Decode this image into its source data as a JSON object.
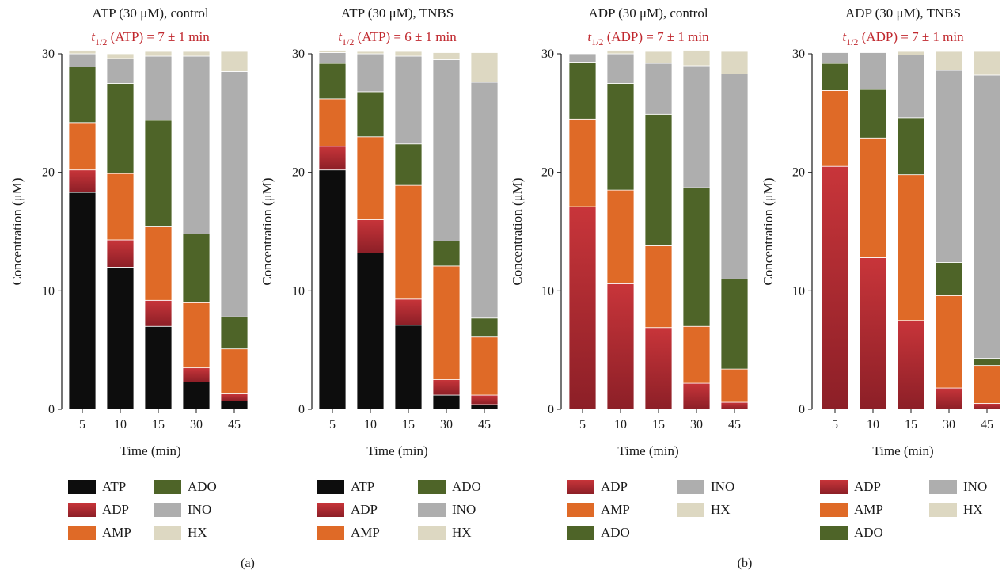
{
  "colors": {
    "ATP": "#0d0d0d",
    "ADP": "#a8252c",
    "AMP": "#df6a27",
    "ADO": "#4e6428",
    "INO": "#aeaeae",
    "HX": "#ddd8c2"
  },
  "panel_labels": [
    "(a)",
    "(b)"
  ],
  "chart_data": [
    {
      "type": "bar",
      "stacked": true,
      "title": "ATP (30 μM), control",
      "subtitle": "t1/2 (ATP) = 7 ± 1 min",
      "subtitle_parts": {
        "var": "t",
        "sub": "1/2",
        "rest": " (ATP) = 7 ± 1 min"
      },
      "xlabel": "Time (min)",
      "ylabel": "Concentration (μM)",
      "ylim": [
        0,
        30
      ],
      "yticks": [
        0,
        10,
        20,
        30
      ],
      "categories": [
        "5",
        "10",
        "15",
        "30",
        "45"
      ],
      "legend": [
        "ATP",
        "ADP",
        "AMP",
        "ADO",
        "INO",
        "HX"
      ],
      "series": [
        {
          "name": "ATP",
          "values": [
            18.3,
            12.0,
            7.0,
            2.3,
            0.7
          ]
        },
        {
          "name": "ADP",
          "values": [
            1.9,
            2.3,
            2.2,
            1.2,
            0.6
          ]
        },
        {
          "name": "AMP",
          "values": [
            4.0,
            5.6,
            6.2,
            5.5,
            3.8
          ]
        },
        {
          "name": "ADO",
          "values": [
            4.7,
            7.6,
            9.0,
            5.8,
            2.7
          ]
        },
        {
          "name": "INO",
          "values": [
            1.1,
            2.1,
            5.4,
            15.0,
            20.7
          ]
        },
        {
          "name": "HX",
          "values": [
            0.3,
            0.4,
            0.4,
            0.4,
            1.7
          ]
        }
      ]
    },
    {
      "type": "bar",
      "stacked": true,
      "title": "ATP (30 μM), TNBS",
      "subtitle": "t1/2 (ATP) = 6 ± 1 min",
      "subtitle_parts": {
        "var": "t",
        "sub": "1/2",
        "rest": " (ATP) = 6 ± 1 min"
      },
      "xlabel": "Time (min)",
      "ylabel": "Concentration (μM)",
      "ylim": [
        0,
        30
      ],
      "yticks": [
        0,
        10,
        20,
        30
      ],
      "categories": [
        "5",
        "10",
        "15",
        "30",
        "45"
      ],
      "legend": [
        "ATP",
        "ADP",
        "AMP",
        "ADO",
        "INO",
        "HX"
      ],
      "series": [
        {
          "name": "ATP",
          "values": [
            20.2,
            13.2,
            7.1,
            1.2,
            0.4
          ]
        },
        {
          "name": "ADP",
          "values": [
            2.0,
            2.8,
            2.2,
            1.3,
            0.8
          ]
        },
        {
          "name": "AMP",
          "values": [
            4.0,
            7.0,
            9.6,
            9.6,
            4.9
          ]
        },
        {
          "name": "ADO",
          "values": [
            3.0,
            3.8,
            3.5,
            2.1,
            1.6
          ]
        },
        {
          "name": "INO",
          "values": [
            0.9,
            3.2,
            7.4,
            15.3,
            19.9
          ]
        },
        {
          "name": "HX",
          "values": [
            0.2,
            0.2,
            0.4,
            0.6,
            2.5
          ]
        }
      ]
    },
    {
      "type": "bar",
      "stacked": true,
      "title": "ADP (30 μM), control",
      "subtitle": "t1/2 (ADP) = 7 ± 1 min",
      "subtitle_parts": {
        "var": "t",
        "sub": "1/2",
        "rest": " (ADP) = 7 ± 1 min"
      },
      "xlabel": "Time (min)",
      "ylabel": "Concentration (μM)",
      "ylim": [
        0,
        30
      ],
      "yticks": [
        0,
        10,
        20,
        30
      ],
      "categories": [
        "5",
        "10",
        "15",
        "30",
        "45"
      ],
      "legend": [
        "ADP",
        "AMP",
        "ADO",
        "INO",
        "HX"
      ],
      "series": [
        {
          "name": "ADP",
          "values": [
            17.1,
            10.6,
            6.9,
            2.2,
            0.6
          ]
        },
        {
          "name": "AMP",
          "values": [
            7.4,
            7.9,
            6.9,
            4.8,
            2.8
          ]
        },
        {
          "name": "ADO",
          "values": [
            4.8,
            9.0,
            11.1,
            11.7,
            7.6
          ]
        },
        {
          "name": "INO",
          "values": [
            0.7,
            2.5,
            4.3,
            10.3,
            17.3
          ]
        },
        {
          "name": "HX",
          "values": [
            0.0,
            0.3,
            1.0,
            1.3,
            1.9
          ]
        }
      ]
    },
    {
      "type": "bar",
      "stacked": true,
      "title": "ADP (30 μM), TNBS",
      "subtitle": "t1/2 (ADP) = 7 ± 1 min",
      "subtitle_parts": {
        "var": "t",
        "sub": "1/2",
        "rest": " (ADP) = 7 ± 1 min"
      },
      "xlabel": "Time (min)",
      "ylabel": "Concentration (μM)",
      "ylim": [
        0,
        30
      ],
      "yticks": [
        0,
        10,
        20,
        30
      ],
      "categories": [
        "5",
        "10",
        "15",
        "30",
        "45"
      ],
      "legend": [
        "ADP",
        "AMP",
        "ADO",
        "INO",
        "HX"
      ],
      "series": [
        {
          "name": "ADP",
          "values": [
            20.5,
            12.8,
            7.5,
            1.8,
            0.5
          ]
        },
        {
          "name": "AMP",
          "values": [
            6.4,
            10.1,
            12.3,
            7.8,
            3.2
          ]
        },
        {
          "name": "ADO",
          "values": [
            2.3,
            4.1,
            4.8,
            2.8,
            0.6
          ]
        },
        {
          "name": "INO",
          "values": [
            0.9,
            3.1,
            5.3,
            16.2,
            23.9
          ]
        },
        {
          "name": "HX",
          "values": [
            0.0,
            0.0,
            0.3,
            1.6,
            2.0
          ]
        }
      ]
    }
  ]
}
